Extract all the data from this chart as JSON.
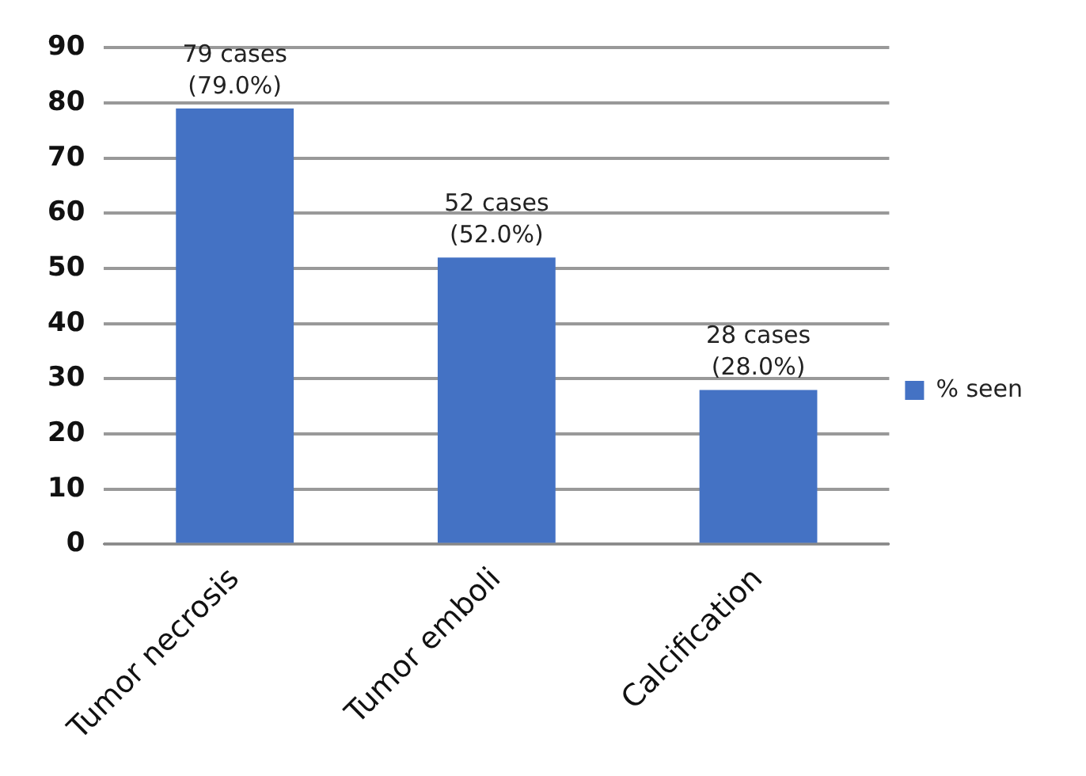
{
  "chart_data": {
    "type": "bar",
    "categories": [
      "Tumor necrosis",
      "Tumor emboli",
      "Calcification"
    ],
    "series": [
      {
        "name": "% seen",
        "color": "#4472c4",
        "values": [
          79,
          52,
          28
        ],
        "value_labels": [
          "79 cases\n(79.0%)",
          "52 cases\n(52.0%)",
          "28 cases\n(28.0%)"
        ]
      }
    ],
    "ylim": [
      0,
      90
    ],
    "yticks": [
      0,
      10,
      20,
      30,
      40,
      50,
      60,
      70,
      80,
      90
    ],
    "grid": "y",
    "legend": "right"
  }
}
